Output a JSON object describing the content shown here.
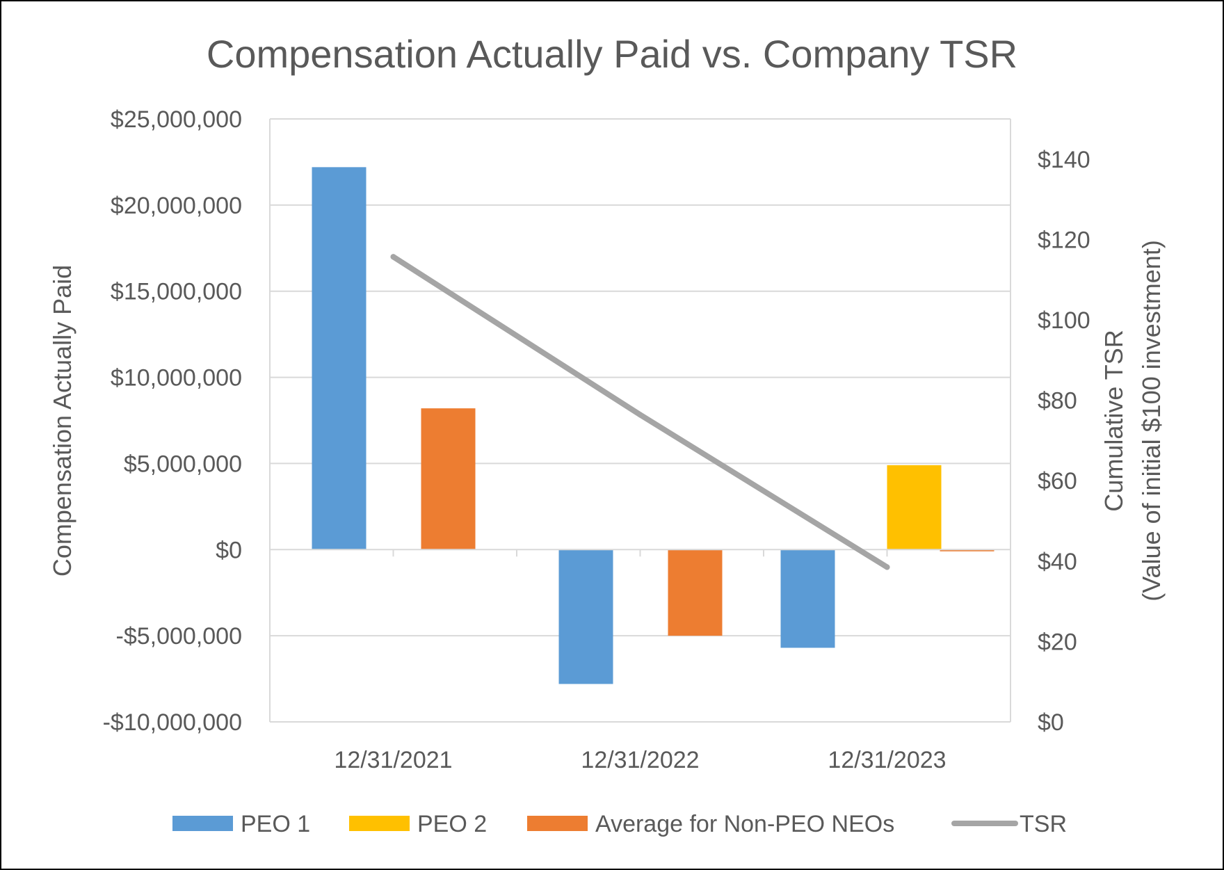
{
  "chart_data": {
    "type": "bar",
    "title": "Compensation Actually Paid vs. Company TSR",
    "categories": [
      "12/31/2021",
      "12/31/2022",
      "12/31/2023"
    ],
    "ylabel": "Compensation Actually Paid",
    "ylabel_right_line1": "Cumulative TSR",
    "ylabel_right_line2": "(Value of initial $100  investment)",
    "ylim": [
      -10000000,
      25000000
    ],
    "y_ticks": [
      {
        "value": 25000000,
        "label": "$25,000,000"
      },
      {
        "value": 20000000,
        "label": "$20,000,000"
      },
      {
        "value": 15000000,
        "label": "$15,000,000"
      },
      {
        "value": 10000000,
        "label": "$10,000,000"
      },
      {
        "value": 5000000,
        "label": "$5,000,000"
      },
      {
        "value": 0,
        "label": "$0"
      },
      {
        "value": -5000000,
        "label": "-$5,000,000"
      },
      {
        "value": -10000000,
        "label": "-$10,000,000"
      }
    ],
    "y2lim": [
      0,
      150
    ],
    "y2_ticks": [
      {
        "value": 140,
        "label": "$140"
      },
      {
        "value": 120,
        "label": "$120"
      },
      {
        "value": 100,
        "label": "$100"
      },
      {
        "value": 80,
        "label": "$80"
      },
      {
        "value": 60,
        "label": "$60"
      },
      {
        "value": 40,
        "label": "$40"
      },
      {
        "value": 20,
        "label": "$20"
      },
      {
        "value": 0,
        "label": "$0"
      }
    ],
    "grid": true,
    "legend_position": "bottom",
    "series": [
      {
        "name": "PEO 1",
        "kind": "bar",
        "color": "#5B9BD5",
        "values": [
          22200000,
          -7800000,
          -5700000
        ]
      },
      {
        "name": "PEO 2",
        "kind": "bar",
        "color": "#FFC000",
        "values": [
          null,
          null,
          4900000
        ]
      },
      {
        "name": "Average for Non-PEO NEOs",
        "kind": "bar",
        "color": "#ED7D31",
        "values": [
          8200000,
          -5000000,
          -100000
        ]
      },
      {
        "name": "TSR",
        "kind": "line",
        "axis": "right",
        "color": "#A5A5A5",
        "values": [
          115.7,
          76.4,
          38.5
        ]
      }
    ]
  }
}
